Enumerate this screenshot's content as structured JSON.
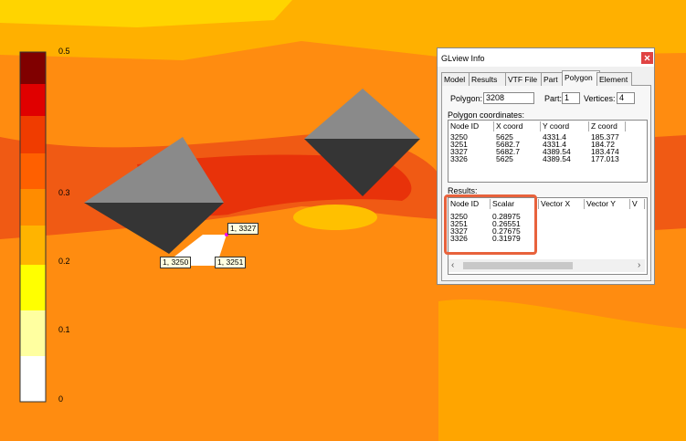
{
  "legend": {
    "labels": [
      "0.5",
      "0.3",
      "0.2",
      "0.1",
      "0"
    ]
  },
  "node_labels": [
    "1, 3327",
    "1, 3250",
    "1, 3251"
  ],
  "dialog": {
    "title": "GLview Info",
    "tabs": [
      "Model",
      "Results",
      "VTF File",
      "Part",
      "Polygon",
      "Element"
    ],
    "polygon_label": "Polygon:",
    "polygon": "3208",
    "part_label": "Part:",
    "part": "1",
    "vertices_label": "Vertices:",
    "vertices": "4",
    "coords_label": "Polygon coordinates:",
    "coords": {
      "headers": [
        "Node ID",
        "X coord",
        "Y coord",
        "Z coord"
      ],
      "rows": [
        [
          "3250",
          "5625",
          "4331.4",
          "185.377"
        ],
        [
          "3251",
          "5682.7",
          "4331.4",
          "184.72"
        ],
        [
          "3327",
          "5682.7",
          "4389.54",
          "183.474"
        ],
        [
          "3326",
          "5625",
          "4389.54",
          "177.013"
        ]
      ]
    },
    "results_label": "Results:",
    "results": {
      "headers": [
        "Node ID",
        "Scalar",
        "Vector X",
        "Vector Y",
        "V"
      ],
      "rows": [
        [
          "3250",
          "0.28975"
        ],
        [
          "3251",
          "0.26551"
        ],
        [
          "3327",
          "0.27675"
        ],
        [
          "3326",
          "0.31979"
        ]
      ]
    }
  }
}
